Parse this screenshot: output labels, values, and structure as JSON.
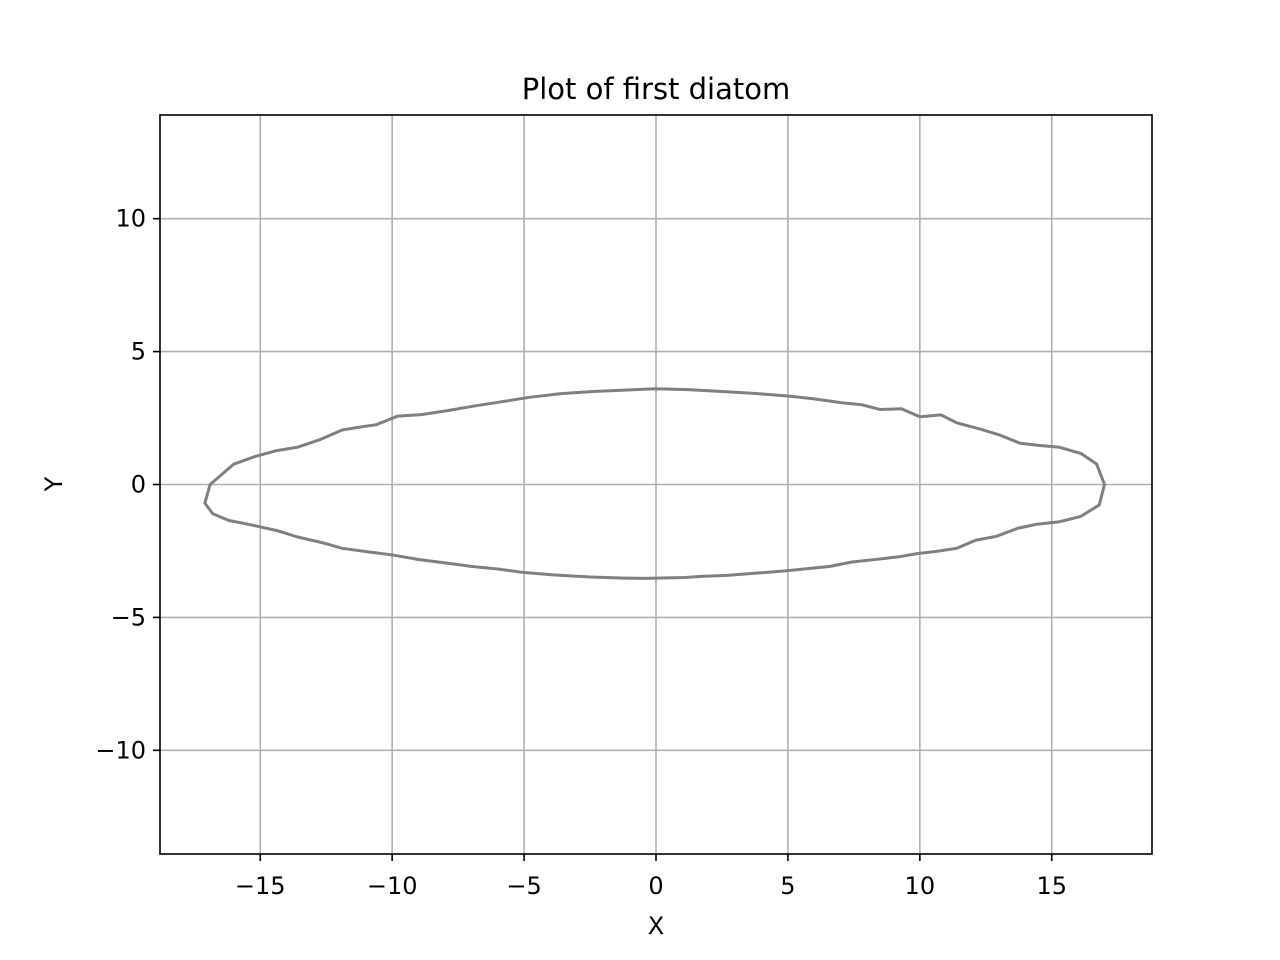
{
  "chart_data": {
    "type": "line",
    "title": "Plot of first diatom",
    "xlabel": "X",
    "ylabel": "Y",
    "xlim": [
      -18.8,
      18.8
    ],
    "ylim": [
      -13.9,
      13.9
    ],
    "grid": true,
    "xticks": [
      -15,
      -10,
      -5,
      0,
      5,
      10,
      15
    ],
    "xtick_labels": [
      "−15",
      "−10",
      "−5",
      "0",
      "5",
      "10",
      "15"
    ],
    "yticks": [
      -10,
      -5,
      0,
      5,
      10
    ],
    "ytick_labels": [
      "−10",
      "−5",
      "0",
      "5",
      "10"
    ],
    "series": [
      {
        "color": "#808080",
        "x": [
          0,
          1.2,
          2.5,
          3.7,
          5.0,
          6.0,
          7.0,
          7.8,
          8.5,
          9.3,
          10.0,
          10.8,
          11.4,
          12.3,
          13.0,
          13.8,
          14.5,
          15.3,
          16.1,
          16.7,
          17.0,
          16.8,
          16.1,
          15.3,
          14.4,
          13.7,
          12.9,
          12.1,
          11.4,
          10.6,
          9.9,
          9.2,
          8.5,
          7.4,
          6.6,
          5.9,
          4.9,
          3.6,
          2.7,
          1.8,
          1.1,
          0,
          -0.5,
          -1.2,
          -2.5,
          -3.9,
          -5.1,
          -6.0,
          -7.0,
          -8.0,
          -9.0,
          -10.0,
          -10.8,
          -11.9,
          -12.6,
          -13.6,
          -14.3,
          -15.2,
          -16.2,
          -16.8,
          -17.1,
          -16.9,
          -16.0,
          -15.2,
          -14.4,
          -13.6,
          -12.7,
          -11.9,
          -11.1,
          -10.6,
          -9.8,
          -8.9,
          -7.9,
          -6.9,
          -5.8,
          -4.8,
          -3.6,
          -2.4,
          -1.2,
          0
        ],
        "y": [
          3.6,
          3.57,
          3.5,
          3.43,
          3.33,
          3.22,
          3.08,
          3.0,
          2.82,
          2.85,
          2.55,
          2.62,
          2.32,
          2.08,
          1.87,
          1.55,
          1.47,
          1.4,
          1.17,
          0.77,
          0.0,
          -0.77,
          -1.2,
          -1.4,
          -1.5,
          -1.65,
          -1.95,
          -2.1,
          -2.4,
          -2.52,
          -2.6,
          -2.72,
          -2.8,
          -2.92,
          -3.08,
          -3.15,
          -3.25,
          -3.35,
          -3.42,
          -3.45,
          -3.5,
          -3.52,
          -3.53,
          -3.52,
          -3.48,
          -3.4,
          -3.3,
          -3.18,
          -3.08,
          -2.95,
          -2.82,
          -2.65,
          -2.55,
          -2.4,
          -2.2,
          -1.97,
          -1.75,
          -1.55,
          -1.35,
          -1.1,
          -0.7,
          0.0,
          0.77,
          1.05,
          1.27,
          1.4,
          1.7,
          2.05,
          2.18,
          2.25,
          2.57,
          2.63,
          2.78,
          2.95,
          3.12,
          3.28,
          3.42,
          3.5,
          3.55,
          3.6
        ]
      }
    ]
  }
}
